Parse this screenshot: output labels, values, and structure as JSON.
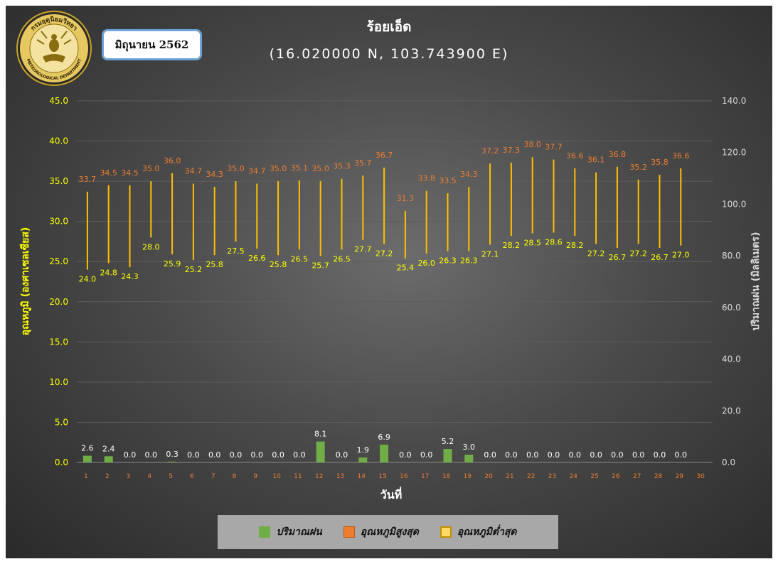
{
  "header": {
    "title": "ร้อยเอ็ด",
    "coords": "(16.020000 N, 103.743900 E)",
    "month": "มิถุนายน 2562",
    "logo_text_top": "กรมอุตุนิยมวิทยา",
    "logo_text_bottom": "METEOROLOGICAL DEPARTMENT"
  },
  "colors": {
    "rain": "#70ad47",
    "max_temp": "#ed7d31",
    "min_temp": "#ffc000",
    "temp_bar": "#ffc000",
    "left_axis_text": "#ffff00",
    "right_axis_text": "#d9d9d9",
    "max_label": "#ed7d31",
    "min_label": "#ffff00",
    "rain_label": "#ffffff"
  },
  "legend": [
    {
      "label": "ปริมาณฝน",
      "color": "#70ad47"
    },
    {
      "label": "อุณหภูมิสูงสุด",
      "color": "#ed7d31"
    },
    {
      "label": "อุณหภูมิต่ำสุด",
      "color": "#ffd966"
    }
  ],
  "chart_data": {
    "type": "bar",
    "xlabel": "วันที่",
    "ylabel_left": "อุณหภูมิ (องศาเซลเซียส)",
    "ylabel_right": "ปริมาณฝน (มิลลิเมตร)",
    "ylim_left": [
      0,
      45
    ],
    "ylim_right": [
      0,
      140
    ],
    "yticks_left": [
      "0.0",
      "5.0",
      "10.0",
      "15.0",
      "20.0",
      "25.0",
      "30.0",
      "35.0",
      "40.0",
      "45.0"
    ],
    "yticks_right": [
      "0.0",
      "20.0",
      "40.0",
      "60.0",
      "80.0",
      "100.0",
      "120.0",
      "140.0"
    ],
    "categories": [
      "1",
      "2",
      "3",
      "4",
      "5",
      "6",
      "7",
      "8",
      "9",
      "10",
      "11",
      "12",
      "13",
      "14",
      "15",
      "16",
      "17",
      "18",
      "19",
      "20",
      "21",
      "22",
      "23",
      "24",
      "25",
      "26",
      "27",
      "28",
      "29",
      "30"
    ],
    "series": [
      {
        "name": "ปริมาณฝน",
        "values": [
          2.6,
          2.4,
          0.0,
          0.0,
          0.3,
          0.0,
          0.0,
          0.0,
          0.0,
          0.0,
          0.0,
          8.1,
          0.0,
          1.9,
          6.9,
          0.0,
          0.0,
          5.2,
          3.0,
          0.0,
          0.0,
          0.0,
          0.0,
          0.0,
          0.0,
          0.0,
          0.0,
          0.0,
          0.0,
          null
        ]
      },
      {
        "name": "อุณหภูมิสูงสุด",
        "values": [
          33.7,
          34.5,
          34.5,
          35.0,
          36.0,
          34.7,
          34.3,
          35.0,
          34.7,
          35.0,
          35.1,
          35.0,
          35.3,
          35.7,
          36.7,
          31.3,
          33.8,
          33.5,
          34.3,
          37.2,
          37.3,
          38.0,
          37.7,
          36.6,
          36.1,
          36.8,
          35.2,
          35.8,
          36.6,
          null
        ]
      },
      {
        "name": "อุณหภูมิต่ำสุด",
        "values": [
          24.0,
          24.8,
          24.3,
          28.0,
          25.9,
          25.2,
          25.8,
          27.5,
          26.6,
          25.8,
          26.5,
          25.7,
          26.5,
          27.7,
          27.2,
          25.4,
          26.0,
          26.3,
          26.3,
          27.1,
          28.2,
          28.5,
          28.6,
          28.2,
          27.2,
          26.7,
          27.2,
          26.7,
          27.0,
          null
        ]
      }
    ],
    "grid": true,
    "legend_position": "bottom"
  }
}
